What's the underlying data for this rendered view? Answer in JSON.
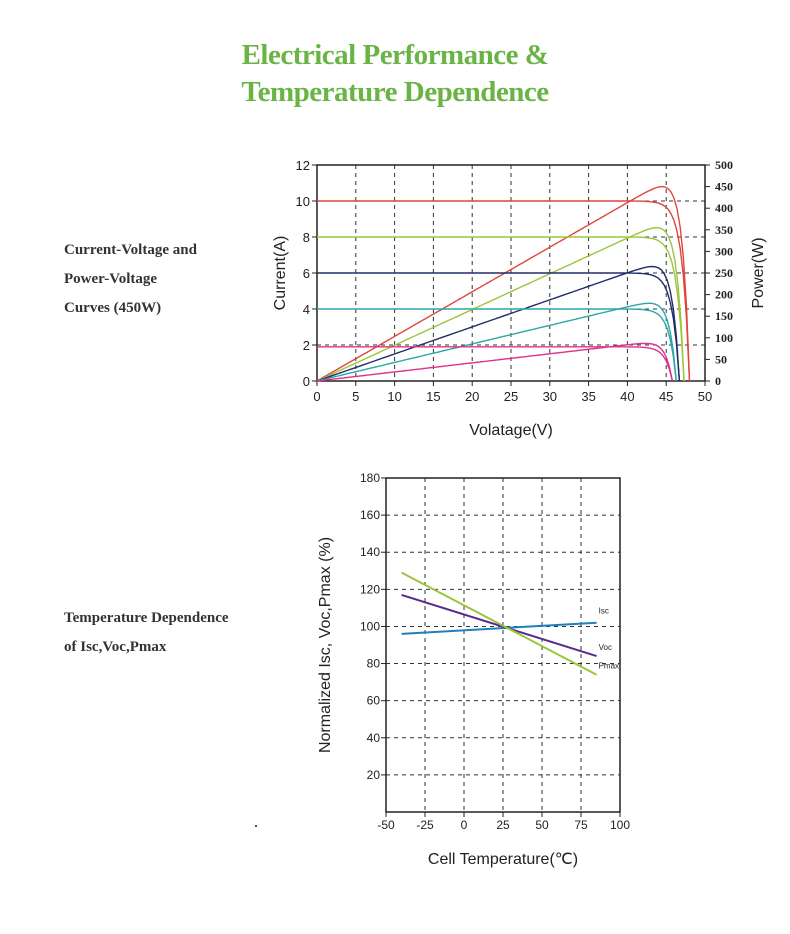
{
  "page": {
    "title_line1": "Electrical Performance &",
    "title_line2": "Temperature Dependence",
    "accent_color": "#6ab445"
  },
  "section1": {
    "label_lines": [
      "Current-Voltage and",
      "Power-Voltage",
      "Curves (450W)"
    ]
  },
  "section2": {
    "label_lines": [
      "Temperature Dependence",
      "of Isc,Voc,Pmax"
    ]
  },
  "chart_data": [
    {
      "type": "line",
      "title": "",
      "xlabel": "Volatage(V)",
      "ylabel": "Current(A)",
      "y2label": "Power(W)",
      "xlim": [
        0,
        50
      ],
      "ylim": [
        0,
        12
      ],
      "y2lim": [
        0,
        500
      ],
      "xticks": [
        "0",
        "5",
        "10",
        "15",
        "20",
        "25",
        "30",
        "35",
        "40",
        "45",
        "50"
      ],
      "yticks": [
        "0",
        "2",
        "4",
        "6",
        "8",
        "10",
        "12"
      ],
      "y2ticks": [
        "0",
        "50",
        "100",
        "150",
        "200",
        "250",
        "300",
        "350",
        "400",
        "450",
        "500"
      ],
      "grid": true,
      "series": [
        {
          "color": "#e0453a",
          "isc": 10.0,
          "voc": 48.0,
          "pmax": 450,
          "vmp": 41.0
        },
        {
          "color": "#9bc63b",
          "isc": 8.0,
          "voc": 47.3,
          "pmax": 355,
          "vmp": 40.5
        },
        {
          "color": "#1f2d6b",
          "isc": 6.0,
          "voc": 46.7,
          "pmax": 265,
          "vmp": 39.5
        },
        {
          "color": "#2aa7a6",
          "isc": 4.0,
          "voc": 46.3,
          "pmax": 180,
          "vmp": 39.5
        },
        {
          "color": "#e0308a",
          "isc": 1.9,
          "voc": 45.8,
          "pmax": 87,
          "vmp": 39.5
        }
      ]
    },
    {
      "type": "line",
      "title": "",
      "xlabel": "Cell Temperature(℃)",
      "ylabel": "Normalized Isc, Voc,Pmax (%)",
      "xlim": [
        -50,
        100
      ],
      "ylim": [
        0,
        180
      ],
      "xticks": [
        "-50",
        "-25",
        "0",
        "25",
        "50",
        "75",
        "100"
      ],
      "yticks": [
        "20",
        "40",
        "60",
        "80",
        "100",
        "120",
        "140",
        "160",
        "180"
      ],
      "grid": true,
      "series": [
        {
          "name": "Isc",
          "color": "#1f7fbf",
          "x": [
            -40,
            85
          ],
          "y": [
            96,
            102
          ]
        },
        {
          "name": "Voc",
          "color": "#5a2a8a",
          "x": [
            -40,
            85
          ],
          "y": [
            117,
            84
          ]
        },
        {
          "name": "Pmax",
          "color": "#9bc63b",
          "x": [
            -40,
            85
          ],
          "y": [
            129,
            74
          ]
        }
      ]
    }
  ]
}
